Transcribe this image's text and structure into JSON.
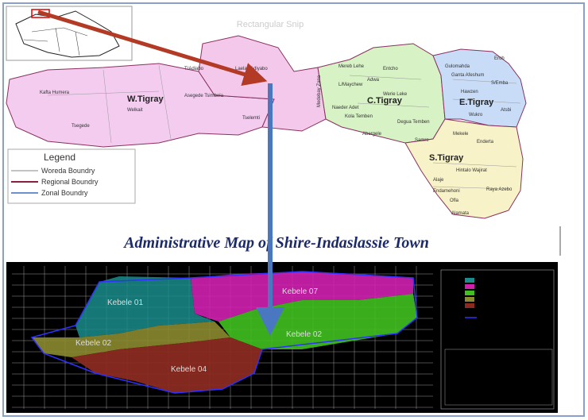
{
  "snip_label": "Rectangular Snip",
  "regional_map": {
    "zones": [
      "W.Tigray",
      "C.Tigray",
      "E.Tigray",
      "S.Tigray"
    ],
    "woredas": [
      "Kafta Humera",
      "Welkait",
      "Tsegede",
      "T/Adiabo",
      "Laelay Adiyabo",
      "Asegede Tsimbela",
      "Tselemti",
      "Medebay Zana",
      "Mereb Lehe",
      "Entcho",
      "Adwa",
      "L/Maychew",
      "Werie Leke",
      "Naeder Adet",
      "Kola Temben",
      "Degua Temben",
      "Abergele",
      "Gulomahda",
      "Erob",
      "Ganta Afeshum",
      "S/Emba",
      "Hawzen",
      "Wukro",
      "Atsbi",
      "Samre",
      "Mekele",
      "Enderta",
      "Hintalo Wajirat",
      "Alaje",
      "Endamehoni",
      "Raya Azebo",
      "Ofla",
      "Alamata"
    ]
  },
  "legend": {
    "title": "Legend",
    "items": [
      "Woreda Boundry",
      "Regional Boundry",
      "Zonal Boundry"
    ]
  },
  "title": "Administrative Map of Shire-Indaslassie Town",
  "town_map": {
    "kebeles": [
      "Kebele 01",
      "Kebele 07",
      "Kebele 02",
      "Kebele 02",
      "Kebele 04"
    ]
  }
}
